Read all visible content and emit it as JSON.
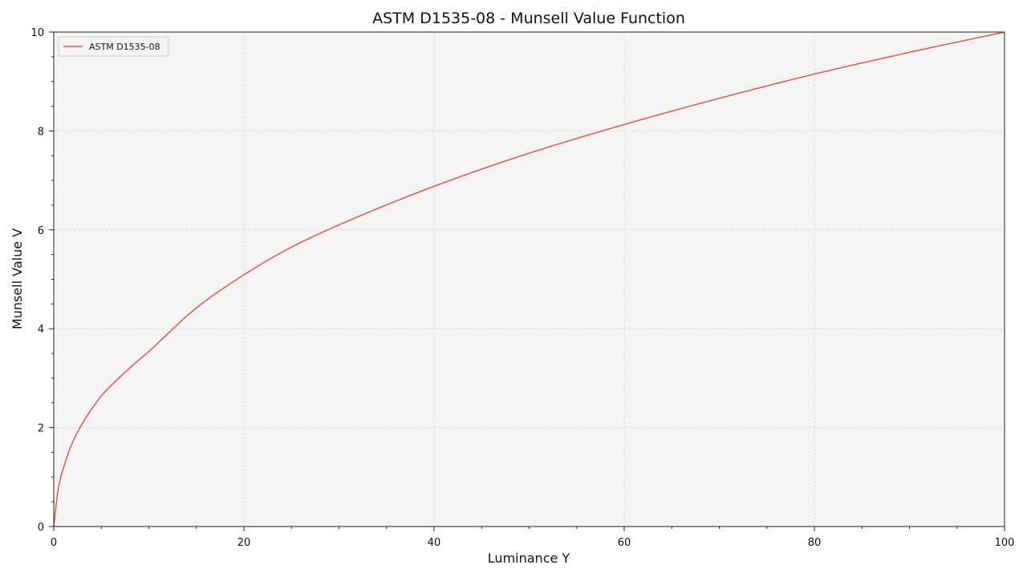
{
  "chart_data": {
    "type": "line",
    "title": "ASTM D1535-08 - Munsell Value Function",
    "xlabel": "Luminance Y",
    "ylabel": "Munsell Value V",
    "xlim": [
      0,
      100
    ],
    "ylim": [
      0,
      10
    ],
    "xticks": [
      "0",
      "20",
      "40",
      "60",
      "80",
      "100"
    ],
    "yticks": [
      "0",
      "2",
      "4",
      "6",
      "8",
      "10"
    ],
    "grid": true,
    "legend_position": "top-left",
    "series": [
      {
        "name": "ASTM D1535-08",
        "color": "#e8402a",
        "x": [
          0,
          0.5,
          1,
          2,
          3,
          4,
          5,
          7.5,
          10,
          15,
          20,
          25,
          30,
          40,
          50,
          60,
          70,
          80,
          90,
          100
        ],
        "y": [
          0,
          0.79,
          1.17,
          1.71,
          2.08,
          2.38,
          2.64,
          3.12,
          3.54,
          4.42,
          5.09,
          5.65,
          6.1,
          6.88,
          7.55,
          8.13,
          8.66,
          9.15,
          9.59,
          10.0
        ]
      }
    ]
  }
}
